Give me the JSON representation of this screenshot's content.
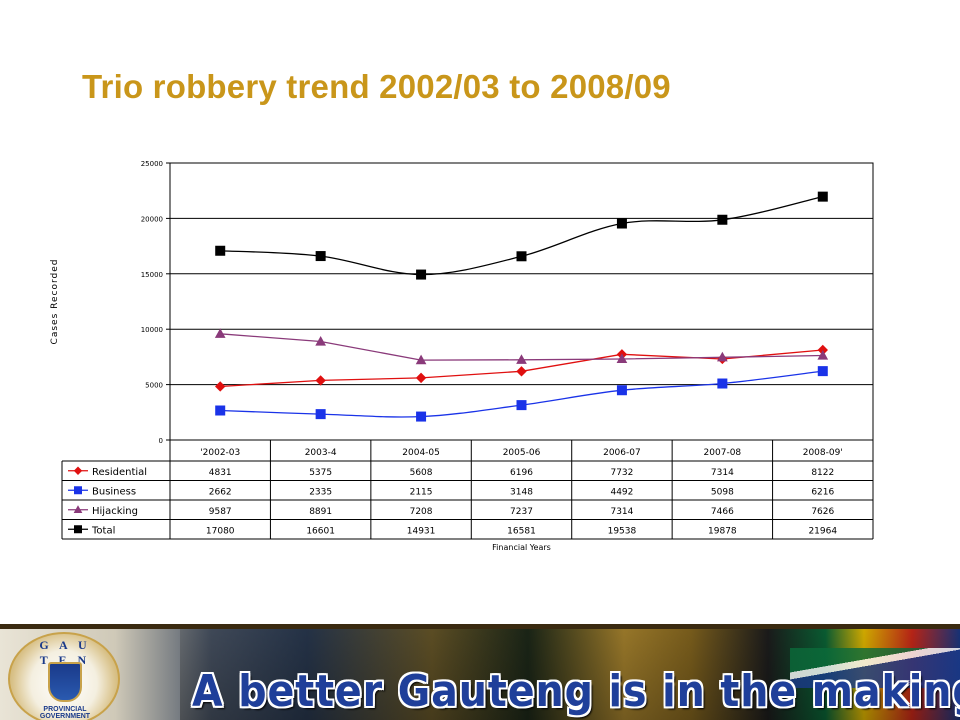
{
  "slide": {
    "title": "Trio robbery trend 2002/03 to 2008/09"
  },
  "footer": {
    "tagline": "A better Gauteng is in  the making",
    "emblem_top": "G A U T E N G",
    "emblem_bottom": "PROVINCIAL GOVERNMENT"
  },
  "chart_data": {
    "type": "line",
    "ylabel": "Cases Recorded",
    "xlabel": "Financial Years",
    "ylim": [
      0,
      25000
    ],
    "yticks": [
      0,
      5000,
      10000,
      15000,
      20000,
      25000
    ],
    "grid": true,
    "legend": "data-table",
    "categories": [
      "'2002-03",
      "2003-4",
      "2004-05",
      "2005-06",
      "2006-07",
      "2007-08",
      "2008-09'"
    ],
    "series": [
      {
        "name": "Residential",
        "color": "#E01010",
        "marker": "diamond",
        "smooth": false,
        "values": [
          4831,
          5375,
          5608,
          6196,
          7732,
          7314,
          8122
        ]
      },
      {
        "name": "Business",
        "color": "#1A33E8",
        "marker": "square",
        "smooth": true,
        "values": [
          2662,
          2335,
          2115,
          3148,
          4492,
          5098,
          6216
        ]
      },
      {
        "name": "Hijacking",
        "color": "#8A3A7A",
        "marker": "triangle",
        "smooth": false,
        "values": [
          9587,
          8891,
          7208,
          7237,
          7314,
          7466,
          7626
        ]
      },
      {
        "name": "Total",
        "color": "#000000",
        "marker": "square",
        "smooth": true,
        "values": [
          17080,
          16601,
          14931,
          16581,
          19538,
          19878,
          21964
        ]
      }
    ]
  }
}
